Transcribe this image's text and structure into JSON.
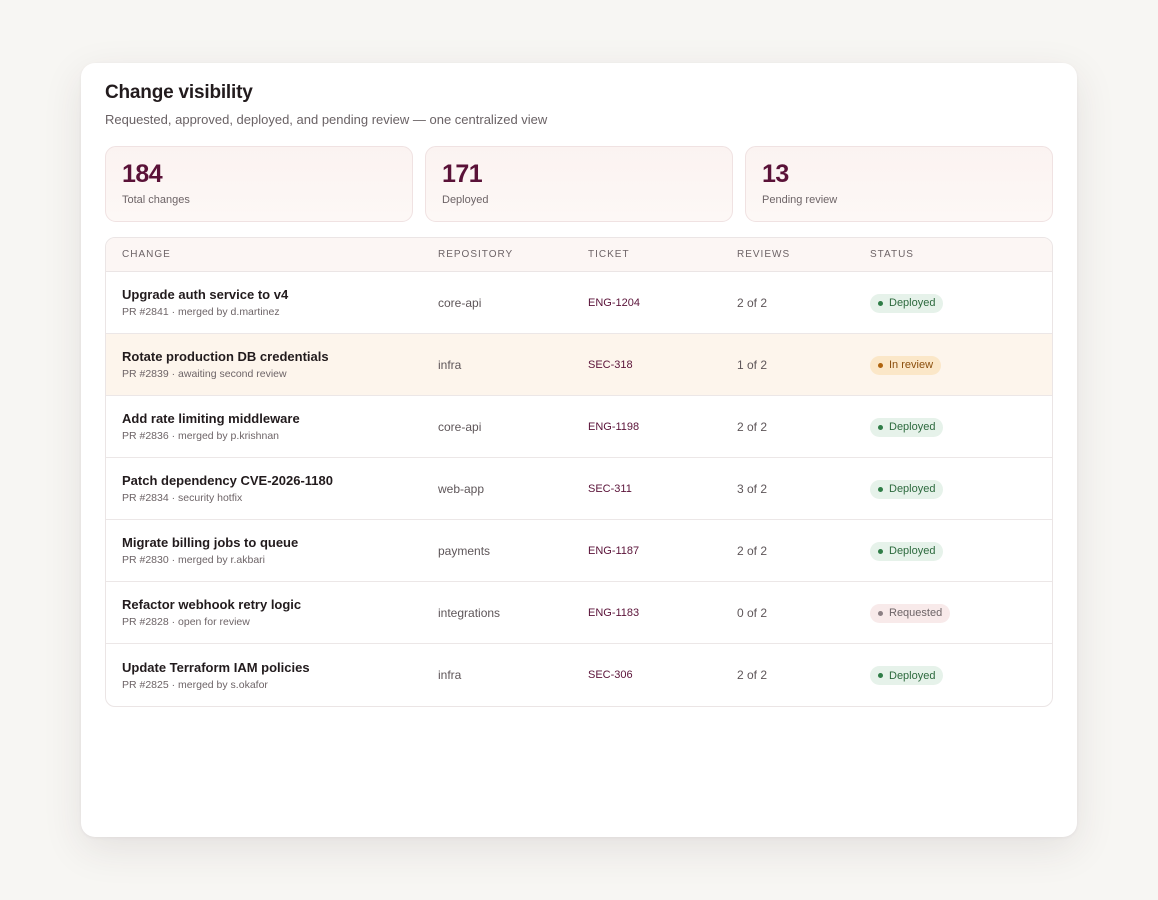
{
  "header": {
    "title": "Change visibility",
    "subtitle": "Requested, approved, deployed, and pending review — one centralized view"
  },
  "stats": [
    {
      "value": "184",
      "label": "Total changes"
    },
    {
      "value": "171",
      "label": "Deployed"
    },
    {
      "value": "13",
      "label": "Pending review"
    }
  ],
  "table": {
    "columns": [
      "CHANGE",
      "REPOSITORY",
      "TICKET",
      "REVIEWS",
      "STATUS"
    ],
    "rows": [
      {
        "title": "Upgrade auth service to v4",
        "meta": "PR #2841 · merged by d.martinez",
        "repo": "core-api",
        "ticket": "ENG-1204",
        "reviews": "2 of 2",
        "status": "Deployed",
        "status_kind": "deployed"
      },
      {
        "title": "Rotate production DB credentials",
        "meta": "PR #2839 · awaiting second review",
        "repo": "infra",
        "ticket": "SEC-318",
        "reviews": "1 of 2",
        "status": "In review",
        "status_kind": "review"
      },
      {
        "title": "Add rate limiting middleware",
        "meta": "PR #2836 · merged by p.krishnan",
        "repo": "core-api",
        "ticket": "ENG-1198",
        "reviews": "2 of 2",
        "status": "Deployed",
        "status_kind": "deployed"
      },
      {
        "title": "Patch dependency CVE-2026-1180",
        "meta": "PR #2834 · security hotfix",
        "repo": "web-app",
        "ticket": "SEC-311",
        "reviews": "3 of 2",
        "status": "Deployed",
        "status_kind": "deployed"
      },
      {
        "title": "Migrate billing jobs to queue",
        "meta": "PR #2830 · merged by r.akbari",
        "repo": "payments",
        "ticket": "ENG-1187",
        "reviews": "2 of 2",
        "status": "Deployed",
        "status_kind": "deployed"
      },
      {
        "title": "Refactor webhook retry logic",
        "meta": "PR #2828 · open for review",
        "repo": "integrations",
        "ticket": "ENG-1183",
        "reviews": "0 of 2",
        "status": "Requested",
        "status_kind": "requested"
      },
      {
        "title": "Update Terraform IAM policies",
        "meta": "PR #2825 · merged by s.okafor",
        "repo": "infra",
        "ticket": "SEC-306",
        "reviews": "2 of 2",
        "status": "Deployed",
        "status_kind": "deployed"
      }
    ]
  },
  "colors": {
    "accent": "#5a1238",
    "deployed": "#2f7d47",
    "in_review": "#b0650f",
    "requested": "#8c8084",
    "highlight_row": "#fdf5ec"
  }
}
